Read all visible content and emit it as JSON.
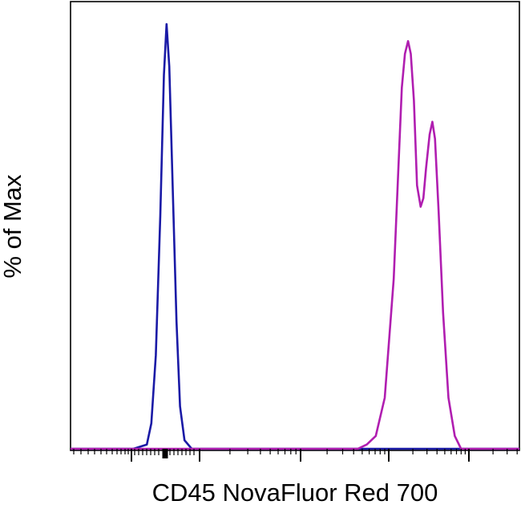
{
  "chart_data": {
    "type": "line",
    "title": "",
    "xlabel": "CD45 NovaFluor Red 700",
    "ylabel": "% of Max",
    "x_scale": "log",
    "x_tick_labels": [],
    "y_tick_labels": [],
    "ylim": [
      0,
      100
    ],
    "grid": false,
    "legend": "none",
    "series": [
      {
        "color": "#1a1aa6",
        "x_units": "relative position along the log axis (0 = left, 1 = right)",
        "points": [
          [
            0.0,
            0
          ],
          [
            0.14,
            0
          ],
          [
            0.17,
            1
          ],
          [
            0.18,
            6
          ],
          [
            0.19,
            22
          ],
          [
            0.2,
            55
          ],
          [
            0.208,
            88
          ],
          [
            0.214,
            100
          ],
          [
            0.22,
            90
          ],
          [
            0.228,
            60
          ],
          [
            0.236,
            30
          ],
          [
            0.244,
            10
          ],
          [
            0.254,
            2
          ],
          [
            0.27,
            0
          ],
          [
            1.0,
            0
          ]
        ]
      },
      {
        "color": "#b01eb0",
        "x_units": "relative position along the log axis (0 = left, 1 = right)",
        "points": [
          [
            0.0,
            0
          ],
          [
            0.64,
            0
          ],
          [
            0.66,
            1
          ],
          [
            0.68,
            3
          ],
          [
            0.7,
            12
          ],
          [
            0.72,
            40
          ],
          [
            0.73,
            65
          ],
          [
            0.738,
            85
          ],
          [
            0.745,
            93
          ],
          [
            0.752,
            96
          ],
          [
            0.758,
            93
          ],
          [
            0.765,
            82
          ],
          [
            0.772,
            62
          ],
          [
            0.78,
            57
          ],
          [
            0.786,
            59
          ],
          [
            0.792,
            66
          ],
          [
            0.8,
            74
          ],
          [
            0.806,
            77
          ],
          [
            0.812,
            73
          ],
          [
            0.82,
            56
          ],
          [
            0.83,
            32
          ],
          [
            0.842,
            12
          ],
          [
            0.856,
            3
          ],
          [
            0.87,
            0
          ],
          [
            1.0,
            0
          ]
        ]
      }
    ]
  }
}
